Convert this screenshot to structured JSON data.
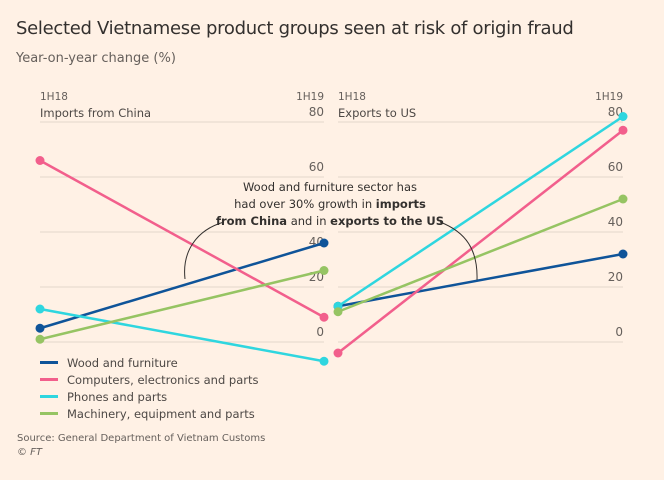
{
  "title": "Selected Vietnamese product groups seen at risk of origin fraud",
  "subtitle": "Year-on-year change (%)",
  "source": "Source: General Department of Vietnam Customs",
  "copyright": "© FT",
  "annotation": {
    "line1": "Wood and furniture sector has",
    "line2_pre": "had over 30% growth in ",
    "line2_bold": "imports",
    "line3_bold1": "from China",
    "line3_mid": " and in ",
    "line3_bold2": "exports to the US"
  },
  "chart_data": [
    {
      "type": "line",
      "title": "Imports from China",
      "categories": [
        "1H18",
        "1H19"
      ],
      "ylim": [
        0,
        80
      ],
      "yticks": [
        0,
        20,
        40,
        60,
        80
      ],
      "grid": true,
      "series": [
        {
          "name": "Wood and furniture",
          "color": "#0f5499",
          "values": [
            5,
            36
          ]
        },
        {
          "name": "Computers, electronics and parts",
          "color": "#f25f8c",
          "values": [
            66,
            9
          ]
        },
        {
          "name": "Phones and parts",
          "color": "#2fd6df",
          "values": [
            12,
            -7
          ]
        },
        {
          "name": "Machinery, equipment and parts",
          "color": "#96c463",
          "values": [
            1,
            26
          ]
        }
      ]
    },
    {
      "type": "line",
      "title": "Exports to US",
      "categories": [
        "1H18",
        "1H19"
      ],
      "ylim": [
        0,
        80
      ],
      "yticks": [
        0,
        20,
        40,
        60,
        80
      ],
      "grid": true,
      "series": [
        {
          "name": "Wood and furniture",
          "color": "#0f5499",
          "values": [
            13,
            32
          ]
        },
        {
          "name": "Computers, electronics and parts",
          "color": "#f25f8c",
          "values": [
            -4,
            77
          ]
        },
        {
          "name": "Phones and parts",
          "color": "#2fd6df",
          "values": [
            13,
            82
          ]
        },
        {
          "name": "Machinery, equipment and parts",
          "color": "#96c463",
          "values": [
            11,
            52
          ]
        }
      ]
    }
  ]
}
